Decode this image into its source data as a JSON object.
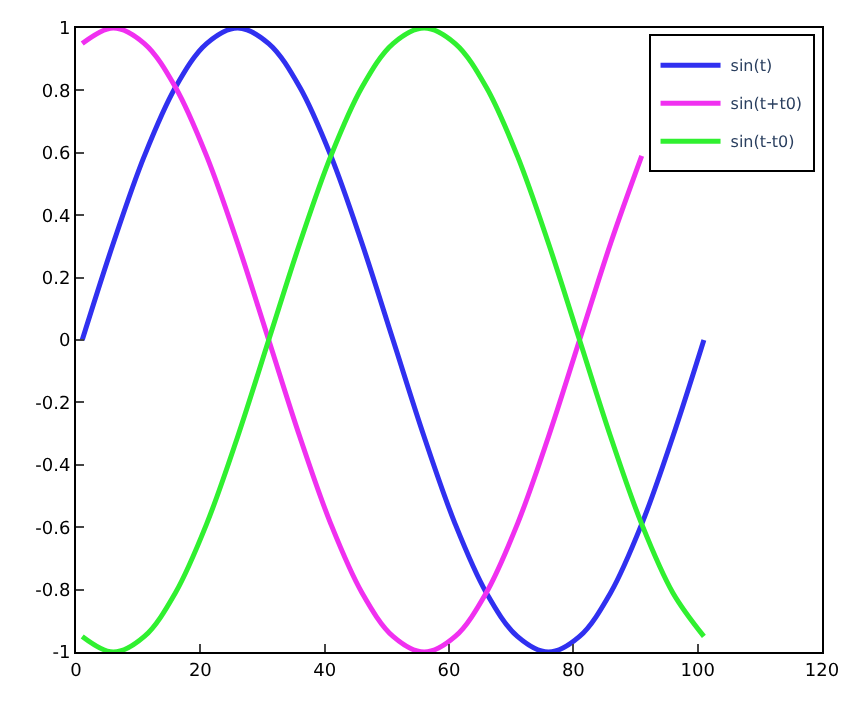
{
  "chart_data": {
    "type": "line",
    "x": [
      1,
      6,
      11,
      16,
      21,
      26,
      31,
      36,
      41,
      46,
      51,
      56,
      61,
      66,
      71,
      76,
      81,
      86,
      91,
      96,
      101
    ],
    "series": [
      {
        "name": "sin(t)",
        "color": "#3030f0",
        "values": [
          0,
          0.31,
          0.59,
          0.81,
          0.95,
          1,
          0.95,
          0.81,
          0.59,
          0.31,
          0,
          -0.31,
          -0.59,
          -0.81,
          -0.95,
          -1,
          -0.95,
          -0.81,
          -0.59,
          -0.31,
          0
        ]
      },
      {
        "name": "sin(t+t0)",
        "color": "#f030f0",
        "values": [
          0.95,
          1,
          0.95,
          0.81,
          0.59,
          0.31,
          0,
          -0.31,
          -0.59,
          -0.81,
          -0.95,
          -1,
          -0.95,
          -0.81,
          -0.59,
          -0.31,
          0,
          0.31,
          0.59,
          null,
          null
        ]
      },
      {
        "name": "sin(t-t0)",
        "color": "#30f030",
        "values": [
          -0.95,
          -1,
          -0.95,
          -0.81,
          -0.59,
          -0.31,
          0,
          0.31,
          0.59,
          0.81,
          0.95,
          1,
          0.95,
          0.81,
          0.59,
          0.31,
          0,
          -0.31,
          -0.59,
          -0.81,
          -0.95
        ]
      }
    ],
    "xlim": [
      0,
      120
    ],
    "xticks": [
      0,
      20,
      40,
      60,
      80,
      100,
      120
    ],
    "ylim": [
      -1,
      1
    ],
    "yticks": [
      -1,
      -0.8,
      -0.6,
      -0.4,
      -0.2,
      0,
      0.2,
      0.4,
      0.6,
      0.8,
      1
    ],
    "legend": "top right",
    "marker": "none",
    "line_style": "solid"
  }
}
